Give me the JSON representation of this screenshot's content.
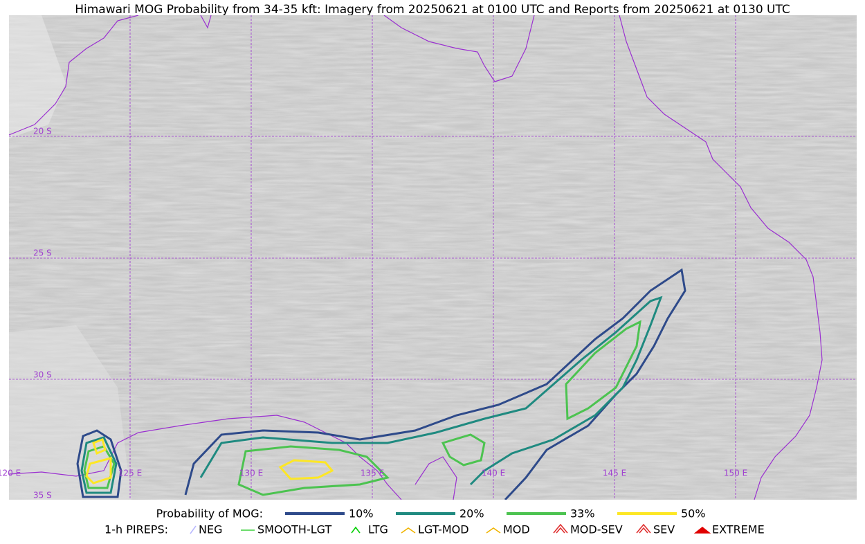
{
  "title": "Himawari MOG Probability from 34-35 kft: Imagery from 20250621 at 0100 UTC and Reports from 20250621 at 0130 UTC",
  "grid_labels": {
    "lat": [
      "20 S",
      "25 S",
      "30 S",
      "35 S"
    ],
    "lon": [
      "120 E",
      "125 E",
      "130 E",
      "135 E",
      "140 E",
      "145 E",
      "150 E"
    ]
  },
  "legend": {
    "probability": {
      "label": "Probability of MOG:",
      "items": [
        {
          "label": "10%",
          "color": "#2e4a8a"
        },
        {
          "label": "20%",
          "color": "#1f8a80"
        },
        {
          "label": "33%",
          "color": "#4cc350"
        },
        {
          "label": "50%",
          "color": "#fde725"
        }
      ]
    },
    "pireps": {
      "label": "1-h PIREPS:",
      "items": [
        {
          "label": "NEG",
          "color": "#b8b8ff"
        },
        {
          "label": "SMOOTH-LGT",
          "color": "#3ad13a"
        },
        {
          "label": "LTG",
          "color": "#00d000"
        },
        {
          "label": "LGT-MOD",
          "color": "#f0b400"
        },
        {
          "label": "MOD",
          "color": "#f0b400"
        },
        {
          "label": "MOD-SEV",
          "color": "#e03030"
        },
        {
          "label": "SEV",
          "color": "#e03030"
        },
        {
          "label": "EXTREME",
          "color": "#e00000"
        }
      ]
    }
  }
}
